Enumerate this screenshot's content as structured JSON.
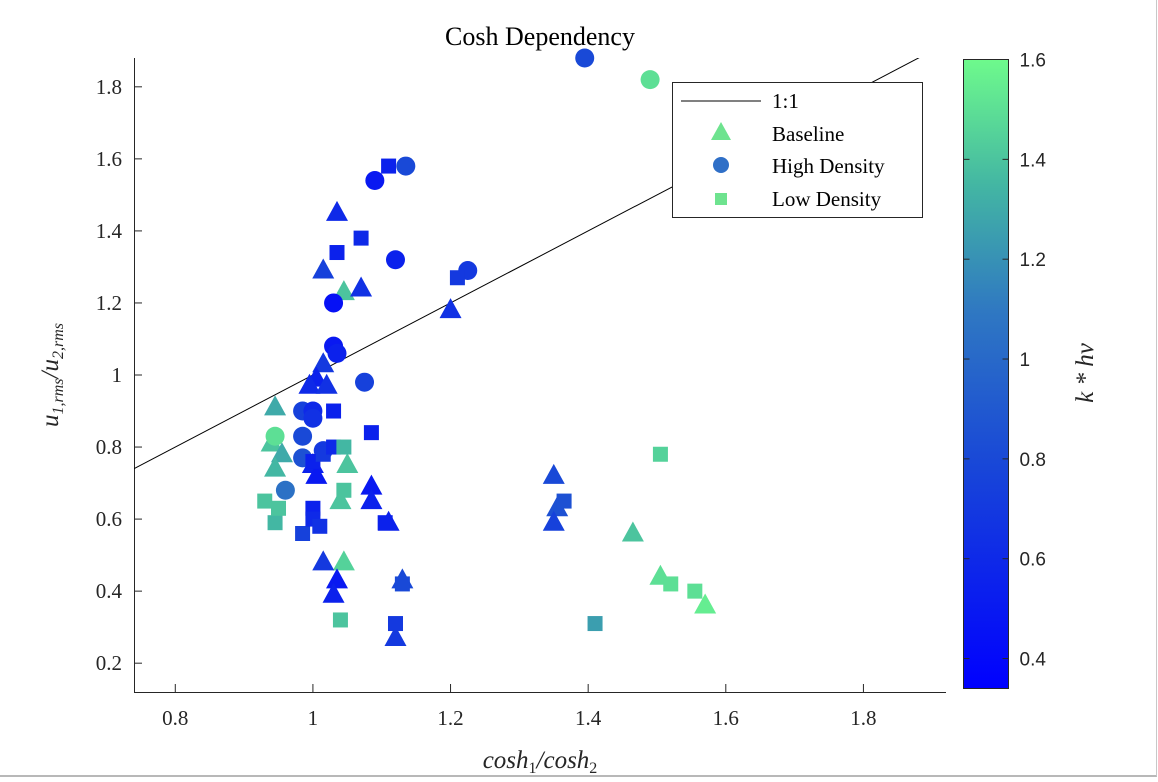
{
  "chart_data": {
    "type": "scatter",
    "title": "Cosh Dependency",
    "xlabel": {
      "base1": "cosh",
      "sub1": "1",
      "sep": "/",
      "base2": "cosh",
      "sub2": "2"
    },
    "ylabel": {
      "base1": "u",
      "sub1": "1,rms",
      "sep": "/",
      "base2": "u",
      "sub2": "2,rms"
    },
    "xlim": [
      0.74,
      1.92
    ],
    "ylim": [
      0.12,
      1.88
    ],
    "xticks": [
      0.8,
      1,
      1.2,
      1.4,
      1.6,
      1.8
    ],
    "xtick_labels": [
      "0.8",
      "1",
      "1.2",
      "1.4",
      "1.6",
      "1.8"
    ],
    "yticks": [
      0.2,
      0.4,
      0.6,
      0.8,
      1,
      1.2,
      1.4,
      1.6,
      1.8
    ],
    "ytick_labels": [
      "0.2",
      "0.4",
      "0.6",
      "0.8",
      "1",
      "1.2",
      "1.4",
      "1.6",
      "1.8"
    ],
    "grid": false,
    "legend_position": "top-right",
    "reference_line": {
      "name": "1:1",
      "slope": 1,
      "intercept": 0
    },
    "colorbar": {
      "label": "k * hv",
      "range": [
        0.34,
        1.6
      ],
      "ticks": [
        0.4,
        0.6,
        0.8,
        1,
        1.2,
        1.4,
        1.6
      ],
      "tick_labels": [
        "0.4",
        "0.6",
        "0.8",
        "1",
        "1.2",
        "1.4",
        "1.6"
      ],
      "color_low": "#0000ff",
      "color_high": "#6efa8c"
    },
    "series": [
      {
        "name": "Baseline",
        "marker": "triangle",
        "points": [
          {
            "x": 0.945,
            "y": 0.91,
            "c": 1.3
          },
          {
            "x": 0.94,
            "y": 0.81,
            "c": 1.4
          },
          {
            "x": 0.955,
            "y": 0.78,
            "c": 1.3
          },
          {
            "x": 0.945,
            "y": 0.74,
            "c": 1.35
          },
          {
            "x": 1.045,
            "y": 1.23,
            "c": 1.4
          },
          {
            "x": 1.05,
            "y": 0.75,
            "c": 1.4
          },
          {
            "x": 1.04,
            "y": 0.65,
            "c": 1.4
          },
          {
            "x": 1.045,
            "y": 0.48,
            "c": 1.45
          },
          {
            "x": 1.035,
            "y": 1.45,
            "c": 0.6
          },
          {
            "x": 1.015,
            "y": 1.29,
            "c": 0.75
          },
          {
            "x": 1.07,
            "y": 1.24,
            "c": 0.65
          },
          {
            "x": 1.015,
            "y": 1.03,
            "c": 0.7
          },
          {
            "x": 1.005,
            "y": 0.99,
            "c": 0.55
          },
          {
            "x": 0.995,
            "y": 0.97,
            "c": 0.6
          },
          {
            "x": 1.02,
            "y": 0.97,
            "c": 0.65
          },
          {
            "x": 1.0,
            "y": 0.75,
            "c": 0.55
          },
          {
            "x": 1.005,
            "y": 0.72,
            "c": 0.5
          },
          {
            "x": 1.085,
            "y": 0.69,
            "c": 0.5
          },
          {
            "x": 1.085,
            "y": 0.65,
            "c": 0.55
          },
          {
            "x": 1.11,
            "y": 0.59,
            "c": 0.55
          },
          {
            "x": 1.015,
            "y": 0.48,
            "c": 0.7
          },
          {
            "x": 1.035,
            "y": 0.43,
            "c": 0.5
          },
          {
            "x": 1.03,
            "y": 0.39,
            "c": 0.55
          },
          {
            "x": 1.13,
            "y": 0.43,
            "c": 0.8
          },
          {
            "x": 1.12,
            "y": 0.27,
            "c": 0.7
          },
          {
            "x": 1.2,
            "y": 1.18,
            "c": 0.65
          },
          {
            "x": 1.35,
            "y": 0.72,
            "c": 0.8
          },
          {
            "x": 1.355,
            "y": 0.63,
            "c": 0.85
          },
          {
            "x": 1.35,
            "y": 0.59,
            "c": 0.75
          },
          {
            "x": 1.465,
            "y": 0.56,
            "c": 1.4
          },
          {
            "x": 1.505,
            "y": 0.44,
            "c": 1.5
          },
          {
            "x": 1.57,
            "y": 0.36,
            "c": 1.55
          }
        ]
      },
      {
        "name": "High Density",
        "marker": "circle",
        "points": [
          {
            "x": 0.945,
            "y": 0.83,
            "c": 1.5
          },
          {
            "x": 0.96,
            "y": 0.68,
            "c": 1.05
          },
          {
            "x": 0.985,
            "y": 0.9,
            "c": 0.75
          },
          {
            "x": 0.985,
            "y": 0.83,
            "c": 0.8
          },
          {
            "x": 0.985,
            "y": 0.77,
            "c": 0.85
          },
          {
            "x": 1.0,
            "y": 0.9,
            "c": 0.6
          },
          {
            "x": 1.0,
            "y": 0.88,
            "c": 0.65
          },
          {
            "x": 1.015,
            "y": 0.79,
            "c": 0.7
          },
          {
            "x": 1.03,
            "y": 1.2,
            "c": 0.45
          },
          {
            "x": 1.03,
            "y": 1.08,
            "c": 0.5
          },
          {
            "x": 1.035,
            "y": 1.06,
            "c": 0.55
          },
          {
            "x": 1.075,
            "y": 0.98,
            "c": 0.75
          },
          {
            "x": 1.09,
            "y": 1.54,
            "c": 0.5
          },
          {
            "x": 1.12,
            "y": 1.32,
            "c": 0.55
          },
          {
            "x": 1.135,
            "y": 1.58,
            "c": 0.8
          },
          {
            "x": 1.225,
            "y": 1.29,
            "c": 0.7
          },
          {
            "x": 1.395,
            "y": 1.88,
            "c": 0.8
          },
          {
            "x": 1.49,
            "y": 1.82,
            "c": 1.5
          }
        ]
      },
      {
        "name": "Low Density",
        "marker": "square",
        "points": [
          {
            "x": 0.93,
            "y": 0.65,
            "c": 1.4
          },
          {
            "x": 0.945,
            "y": 0.59,
            "c": 1.35
          },
          {
            "x": 0.95,
            "y": 0.63,
            "c": 1.4
          },
          {
            "x": 0.985,
            "y": 0.56,
            "c": 0.75
          },
          {
            "x": 1.0,
            "y": 0.76,
            "c": 0.55
          },
          {
            "x": 1.0,
            "y": 0.63,
            "c": 0.55
          },
          {
            "x": 1.0,
            "y": 0.6,
            "c": 0.6
          },
          {
            "x": 1.01,
            "y": 0.58,
            "c": 0.65
          },
          {
            "x": 1.015,
            "y": 0.78,
            "c": 0.7
          },
          {
            "x": 1.03,
            "y": 0.9,
            "c": 0.55
          },
          {
            "x": 1.03,
            "y": 0.8,
            "c": 0.6
          },
          {
            "x": 1.035,
            "y": 1.34,
            "c": 0.55
          },
          {
            "x": 1.045,
            "y": 0.8,
            "c": 1.35
          },
          {
            "x": 1.045,
            "y": 0.68,
            "c": 1.4
          },
          {
            "x": 1.04,
            "y": 0.32,
            "c": 1.4
          },
          {
            "x": 1.07,
            "y": 1.38,
            "c": 0.6
          },
          {
            "x": 1.085,
            "y": 0.84,
            "c": 0.55
          },
          {
            "x": 1.105,
            "y": 0.59,
            "c": 0.55
          },
          {
            "x": 1.11,
            "y": 1.58,
            "c": 0.55
          },
          {
            "x": 1.12,
            "y": 0.31,
            "c": 0.7
          },
          {
            "x": 1.13,
            "y": 0.42,
            "c": 0.8
          },
          {
            "x": 1.21,
            "y": 1.27,
            "c": 0.7
          },
          {
            "x": 1.365,
            "y": 0.65,
            "c": 0.85
          },
          {
            "x": 1.41,
            "y": 0.31,
            "c": 1.25
          },
          {
            "x": 1.505,
            "y": 0.78,
            "c": 1.45
          },
          {
            "x": 1.52,
            "y": 0.42,
            "c": 1.5
          },
          {
            "x": 1.555,
            "y": 0.4,
            "c": 1.5
          }
        ]
      }
    ]
  },
  "colors": {
    "axis": "#262626",
    "reference_line": "#000000",
    "legend_swatch_baseline": "#6ee38f",
    "legend_swatch_high_density": "#2f6fc7",
    "legend_swatch_low_density": "#6ee38f"
  },
  "legend": {
    "ref_label": "1:1",
    "baseline_label": "Baseline",
    "high_label": "High Density",
    "low_label": "Low Density"
  }
}
